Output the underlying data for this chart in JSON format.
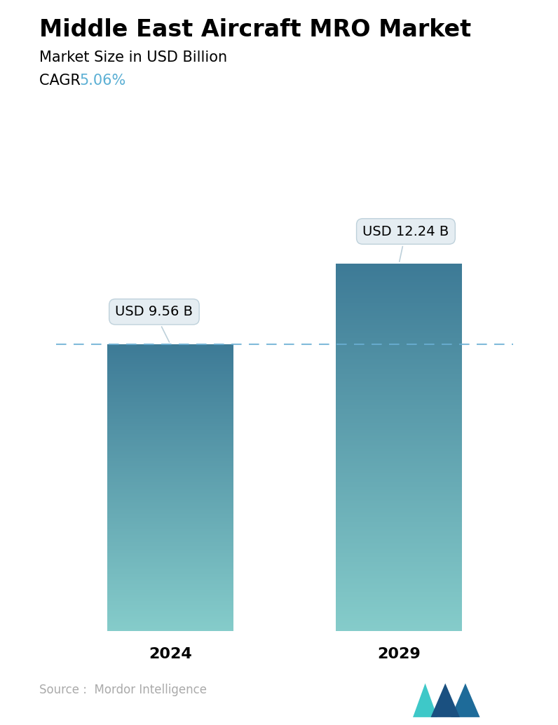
{
  "title": "Middle East Aircraft MRO Market",
  "subtitle": "Market Size in USD Billion",
  "cagr_label": "CAGR ",
  "cagr_value": "5.06%",
  "cagr_color": "#5AAFD4",
  "categories": [
    "2024",
    "2029"
  ],
  "values": [
    9.56,
    12.24
  ],
  "bar_labels": [
    "USD 9.56 B",
    "USD 12.24 B"
  ],
  "bar_color_top": "#3D7A96",
  "bar_color_bottom": "#85CCCA",
  "dashed_line_color": "#6AAFD4",
  "source_text": "Source :  Mordor Intelligence",
  "source_color": "#AAAAAA",
  "background_color": "#FFFFFF",
  "title_fontsize": 24,
  "subtitle_fontsize": 15,
  "cagr_fontsize": 15,
  "bar_label_fontsize": 14,
  "xlabel_fontsize": 16,
  "source_fontsize": 12,
  "ylim_max": 14.5,
  "bar_width": 0.55
}
